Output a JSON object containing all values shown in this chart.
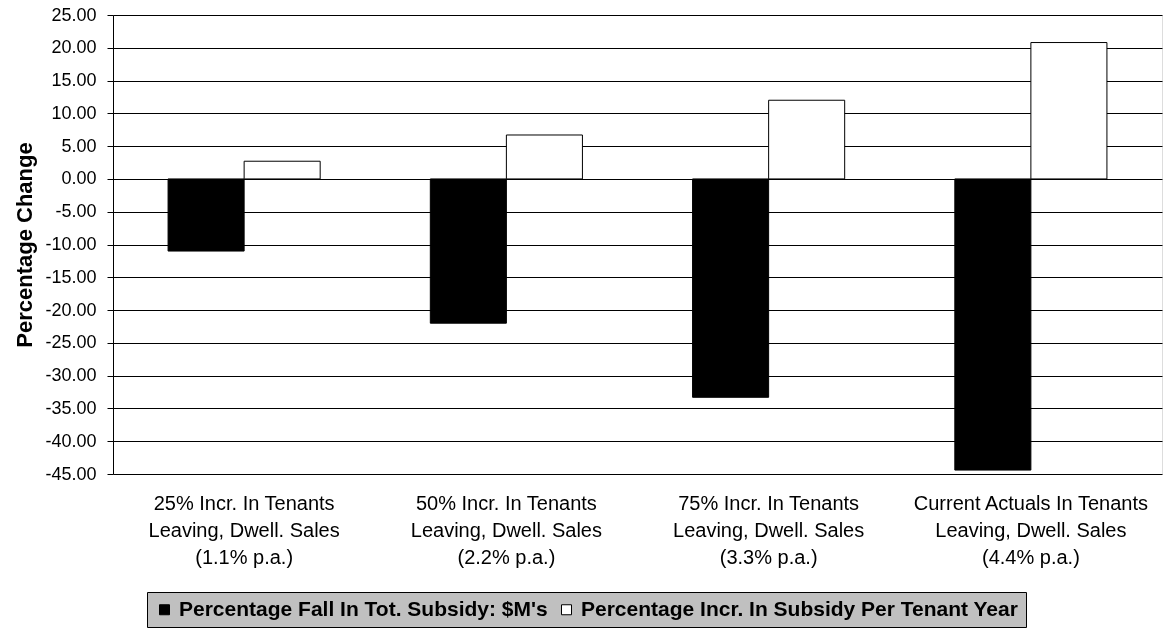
{
  "chart_data": {
    "type": "bar",
    "ylabel": "Percentage Change",
    "categories": [
      "25% Incr. In Tenants\nLeaving, Dwell. Sales\n(1.1% p.a.)",
      "50% Incr. In Tenants\nLeaving, Dwell. Sales\n(2.2% p.a.)",
      "75% Incr. In Tenants\nLeaving, Dwell. Sales\n(3.3% p.a.)",
      "Current Actuals In Tenants\nLeaving, Dwell. Sales\n(4.4% p.a.)"
    ],
    "series": [
      {
        "name": "Percentage Fall In Tot. Subsidy: $M's",
        "color": "#000000",
        "values": [
          -11.0,
          -22.0,
          -33.3,
          -44.4
        ]
      },
      {
        "name": "Percentage Incr. In Subsidy Per Tenant Year",
        "color": "#ffffff",
        "values": [
          2.7,
          6.7,
          12.0,
          20.8
        ]
      }
    ],
    "ylim": [
      -45,
      25
    ],
    "yticks": [
      {
        "value": 25,
        "label": "25.00"
      },
      {
        "value": 20,
        "label": "20.00"
      },
      {
        "value": 15,
        "label": "15.00"
      },
      {
        "value": 10,
        "label": "10.00"
      },
      {
        "value": 5,
        "label": "5.00"
      },
      {
        "value": 0,
        "label": "0.00"
      },
      {
        "value": -5,
        "label": "-5.00"
      },
      {
        "value": -10,
        "label": "-10.00"
      },
      {
        "value": -15,
        "label": "-15.00"
      },
      {
        "value": -20,
        "label": "-20.00"
      },
      {
        "value": -25,
        "label": "-25.00"
      },
      {
        "value": -30,
        "label": "-30.00"
      },
      {
        "value": -35,
        "label": "-35.00"
      },
      {
        "value": -40,
        "label": "-40.00"
      },
      {
        "value": -45,
        "label": "-45.00"
      }
    ],
    "grid": "y",
    "legend": "bottom"
  }
}
